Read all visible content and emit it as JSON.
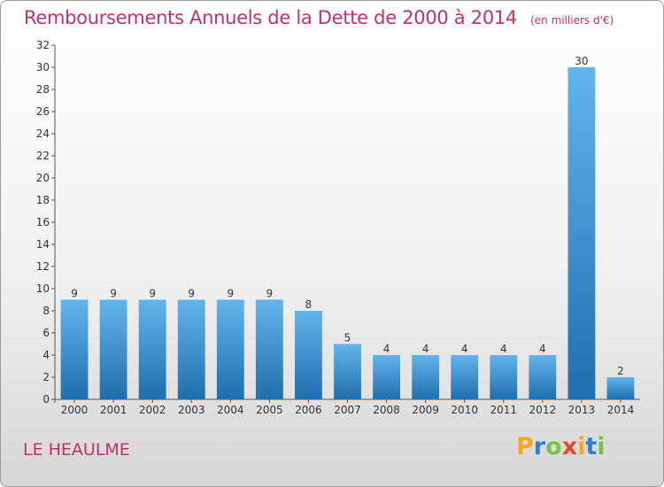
{
  "header": {
    "title": "Remboursements Annuels de la Dette de 2000 à 2014",
    "unit": "(en milliers d'€)"
  },
  "footer": {
    "commune": "LE HEAULME",
    "logo_text": "Proxiti",
    "logo_colors": [
      "#f5a623",
      "#2d7fd6",
      "#7bc142",
      "#e8462e",
      "#f5a623",
      "#2d7fd6",
      "#7bc142"
    ]
  },
  "colors": {
    "bar_top": "#62b4ec",
    "bar_bottom": "#1f6fae",
    "accent": "#c0306e"
  },
  "chart_data": {
    "type": "bar",
    "categories": [
      "2000",
      "2001",
      "2002",
      "2003",
      "2004",
      "2005",
      "2006",
      "2007",
      "2008",
      "2009",
      "2010",
      "2011",
      "2012",
      "2013",
      "2014"
    ],
    "values": [
      9,
      9,
      9,
      9,
      9,
      9,
      8,
      5,
      4,
      4,
      4,
      4,
      4,
      30,
      2
    ],
    "ylim": [
      0,
      32
    ],
    "yticks": [
      0,
      2,
      4,
      6,
      8,
      10,
      12,
      14,
      16,
      18,
      20,
      22,
      24,
      26,
      28,
      30,
      32
    ],
    "grid": false,
    "legend": "none"
  }
}
